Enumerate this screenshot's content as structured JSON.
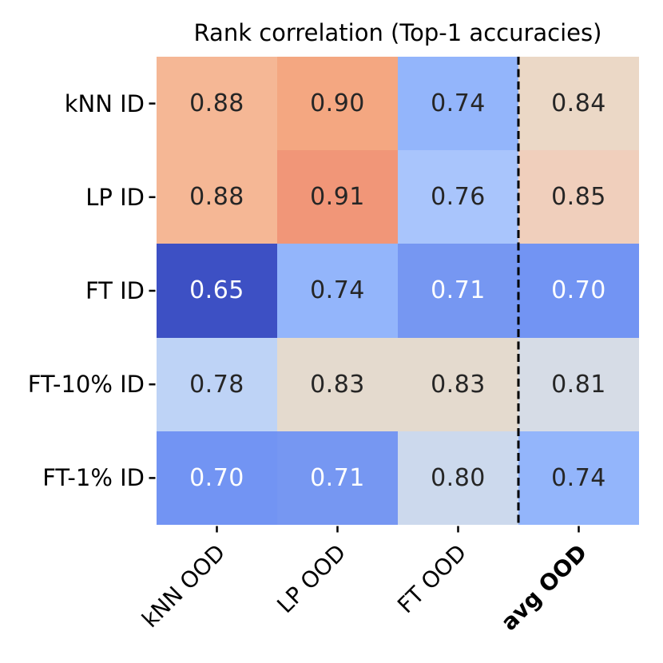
{
  "title": "Rank correlation (Top-1 accuracies)",
  "heatmap": {
    "row_labels": [
      "kNN ID",
      "LP ID",
      "FT ID",
      "FT-10% ID",
      "FT-1% ID"
    ],
    "col_labels": [
      {
        "label": "kNN OOD",
        "bold": false
      },
      {
        "label": "LP OOD",
        "bold": false
      },
      {
        "label": "FT OOD",
        "bold": false
      },
      {
        "label": "avg OOD",
        "bold": true
      }
    ],
    "rows": [
      {
        "cells": [
          {
            "v": "0.88",
            "bg": "#F5B795",
            "fg": "#262626"
          },
          {
            "v": "0.90",
            "bg": "#F4A781",
            "fg": "#262626"
          },
          {
            "v": "0.74",
            "bg": "#93B5FB",
            "fg": "#262626"
          },
          {
            "v": "0.84",
            "bg": "#EBD8C6",
            "fg": "#262626"
          }
        ]
      },
      {
        "cells": [
          {
            "v": "0.88",
            "bg": "#F5B795",
            "fg": "#262626"
          },
          {
            "v": "0.91",
            "bg": "#F19678",
            "fg": "#262626"
          },
          {
            "v": "0.76",
            "bg": "#A9C5FC",
            "fg": "#262626"
          },
          {
            "v": "0.85",
            "bg": "#F0CFBC",
            "fg": "#262626"
          }
        ]
      },
      {
        "cells": [
          {
            "v": "0.65",
            "bg": "#3D50C4",
            "fg": "#FFFFFF"
          },
          {
            "v": "0.74",
            "bg": "#93B5FB",
            "fg": "#262626"
          },
          {
            "v": "0.71",
            "bg": "#7697F2",
            "fg": "#FFFFFF"
          },
          {
            "v": "0.70",
            "bg": "#7294F3",
            "fg": "#FFFFFF"
          }
        ]
      },
      {
        "cells": [
          {
            "v": "0.78",
            "bg": "#BED3F6",
            "fg": "#262626"
          },
          {
            "v": "0.83",
            "bg": "#E4DACE",
            "fg": "#262626"
          },
          {
            "v": "0.83",
            "bg": "#E4DACE",
            "fg": "#262626"
          },
          {
            "v": "0.81",
            "bg": "#D6DCE6",
            "fg": "#262626"
          }
        ]
      },
      {
        "cells": [
          {
            "v": "0.70",
            "bg": "#7294F3",
            "fg": "#FFFFFF"
          },
          {
            "v": "0.71",
            "bg": "#7697F2",
            "fg": "#FFFFFF"
          },
          {
            "v": "0.80",
            "bg": "#CCD9ED",
            "fg": "#262626"
          },
          {
            "v": "0.74",
            "bg": "#93B5FB",
            "fg": "#262626"
          }
        ]
      }
    ]
  },
  "colors": {
    "separator_line": "#000000",
    "tick_color": "#000000",
    "value_text_dark": "#262626",
    "value_text_light": "#FFFFFF"
  },
  "chart_data": {
    "type": "heatmap",
    "title": "Rank correlation (Top-1 accuracies)",
    "x_categories": [
      "kNN OOD",
      "LP OOD",
      "FT OOD",
      "avg OOD"
    ],
    "y_categories": [
      "kNN ID",
      "LP ID",
      "FT ID",
      "FT-10% ID",
      "FT-1% ID"
    ],
    "values": [
      [
        0.88,
        0.9,
        0.74,
        0.84
      ],
      [
        0.88,
        0.91,
        0.76,
        0.85
      ],
      [
        0.65,
        0.74,
        0.71,
        0.7
      ],
      [
        0.78,
        0.83,
        0.83,
        0.81
      ],
      [
        0.7,
        0.71,
        0.8,
        0.74
      ]
    ],
    "colormap": "coolwarm",
    "annotations": true,
    "separator_after_column": 3,
    "x_tick_rotation": 45,
    "bold_x_category": "avg OOD",
    "legend": "none",
    "grid": false
  }
}
